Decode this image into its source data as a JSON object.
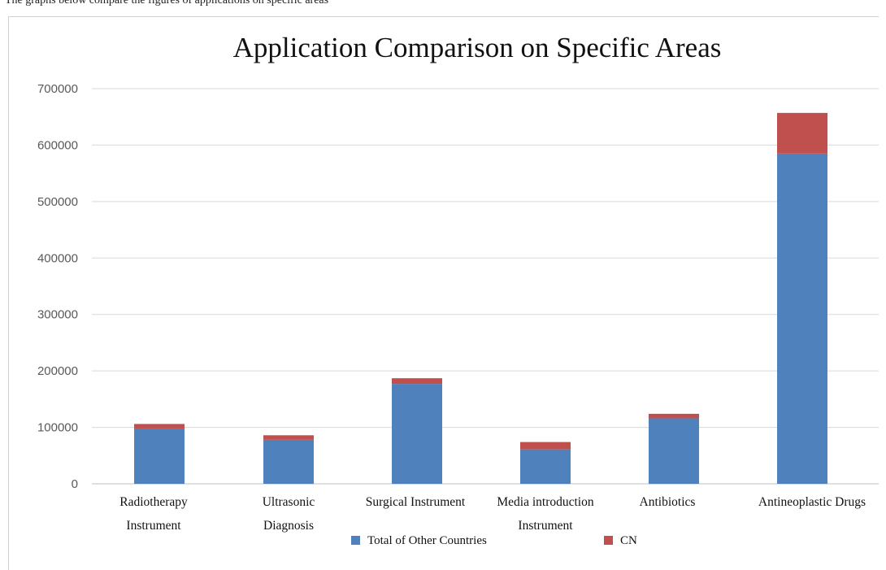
{
  "page": {
    "caption_fragment": "The graphs below compare the figures of applications on specific areas"
  },
  "chart_data": {
    "type": "bar",
    "stacked": true,
    "title": "Application Comparison on Specific Areas",
    "categories": [
      [
        "Radiotherapy",
        "Instrument"
      ],
      [
        "Ultrasonic",
        "Diagnosis"
      ],
      [
        "Surgical Instrument"
      ],
      [
        "Media introduction",
        "Instrument"
      ],
      [
        "Antibiotics"
      ],
      [
        "Antineoplastic Drugs"
      ]
    ],
    "series": [
      {
        "name": "Total of Other Countries",
        "color": "#4f81bd",
        "values": [
          98000,
          78000,
          177000,
          61000,
          116000,
          585000
        ]
      },
      {
        "name": "CN",
        "color": "#c0504d",
        "values": [
          8000,
          8000,
          10000,
          13000,
          8000,
          72000
        ]
      }
    ],
    "ylim": [
      0,
      700000
    ],
    "yticks": [
      "700000",
      "600000",
      "500000",
      "400000",
      "300000",
      "200000",
      "100000",
      "0"
    ],
    "ytick_values": [
      700000,
      600000,
      500000,
      400000,
      300000,
      200000,
      100000,
      0
    ],
    "grid": true,
    "legend": "bottom",
    "xlabel": "",
    "ylabel": ""
  }
}
